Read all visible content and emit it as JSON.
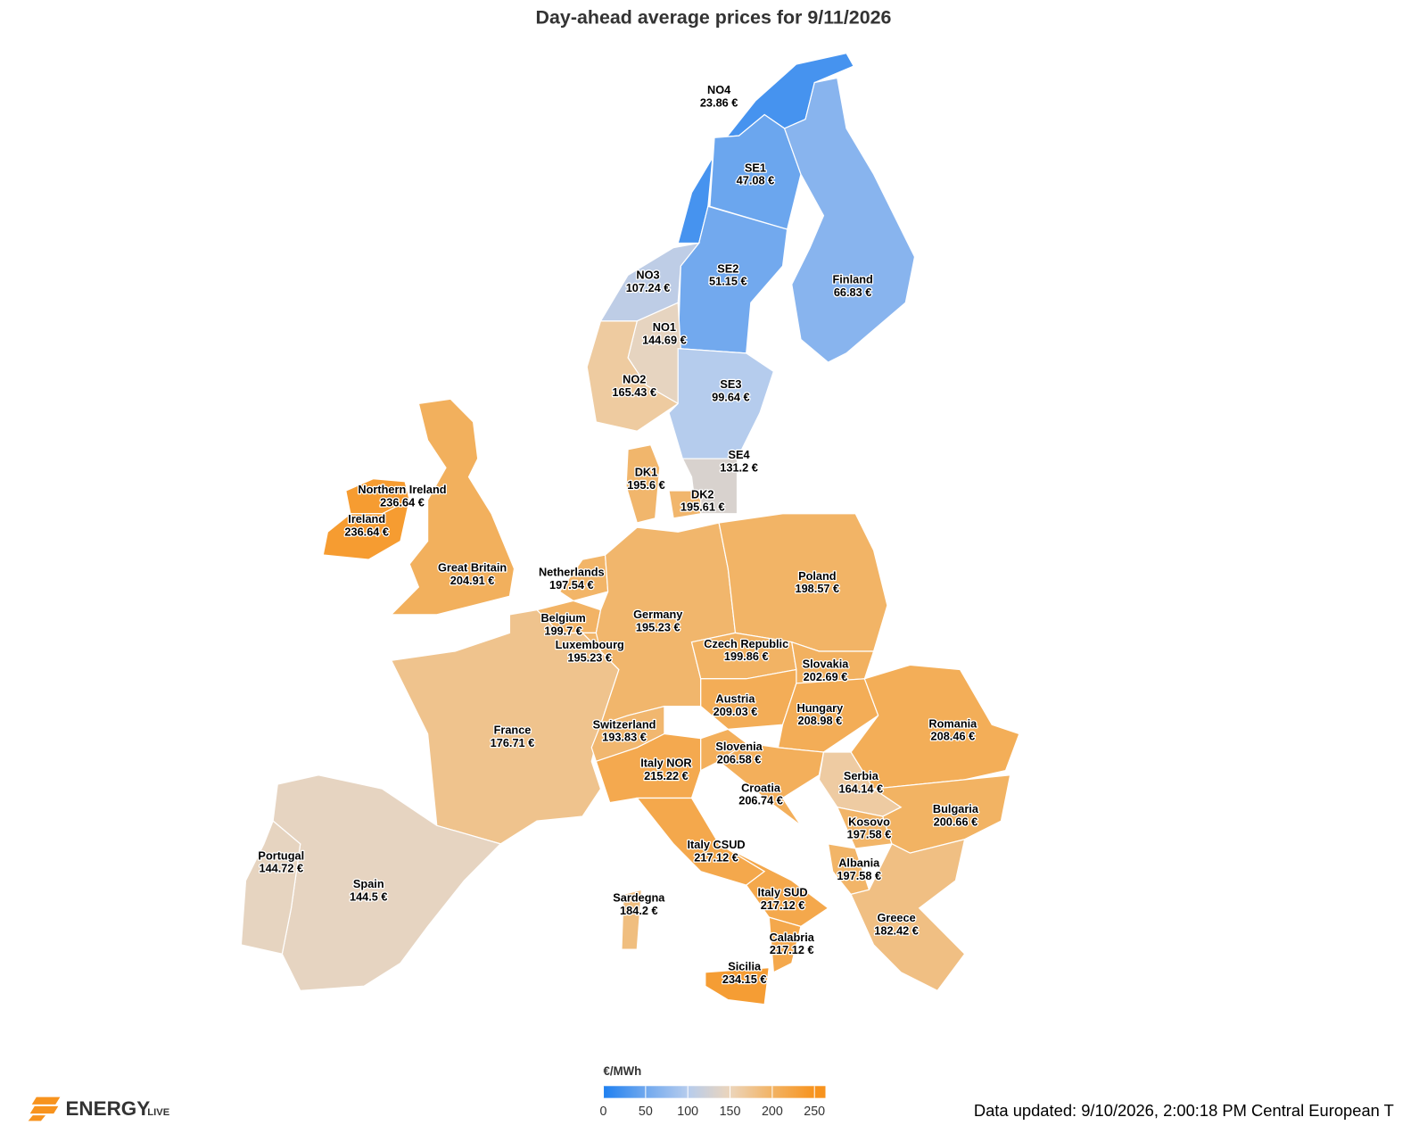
{
  "title": "Day-ahead average prices for 9/11/2026",
  "regions": [
    {
      "name": "NO4",
      "value": 23.86,
      "value_label": "23.86 €"
    },
    {
      "name": "SE1",
      "value": 47.08,
      "value_label": "47.08 €"
    },
    {
      "name": "SE2",
      "value": 51.15,
      "value_label": "51.15 €"
    },
    {
      "name": "Finland",
      "value": 66.83,
      "value_label": "66.83 €"
    },
    {
      "name": "NO3",
      "value": 107.24,
      "value_label": "107.24 €"
    },
    {
      "name": "NO1",
      "value": 144.69,
      "value_label": "144.69 €"
    },
    {
      "name": "NO2",
      "value": 165.43,
      "value_label": "165.43 €"
    },
    {
      "name": "SE3",
      "value": 99.64,
      "value_label": "99.64 €"
    },
    {
      "name": "SE4",
      "value": 131.2,
      "value_label": "131.2 €"
    },
    {
      "name": "DK1",
      "value": 195.6,
      "value_label": "195.6 €"
    },
    {
      "name": "DK2",
      "value": 195.61,
      "value_label": "195.61 €"
    },
    {
      "name": "Northern Ireland",
      "value": 236.64,
      "value_label": "236.64 €"
    },
    {
      "name": "Ireland",
      "value": 236.64,
      "value_label": "236.64 €"
    },
    {
      "name": "Great Britain",
      "value": 204.91,
      "value_label": "204.91 €"
    },
    {
      "name": "Netherlands",
      "value": 197.54,
      "value_label": "197.54 €"
    },
    {
      "name": "Belgium",
      "value": 199.7,
      "value_label": "199.7 €"
    },
    {
      "name": "Luxembourg",
      "value": 195.23,
      "value_label": "195.23 €"
    },
    {
      "name": "France",
      "value": 176.71,
      "value_label": "176.71 €"
    },
    {
      "name": "Spain",
      "value": 144.5,
      "value_label": "144.5 €"
    },
    {
      "name": "Portugal",
      "value": 144.72,
      "value_label": "144.72 €"
    },
    {
      "name": "Germany",
      "value": 195.23,
      "value_label": "195.23 €"
    },
    {
      "name": "Poland",
      "value": 198.57,
      "value_label": "198.57 €"
    },
    {
      "name": "Czech Republic",
      "value": 199.86,
      "value_label": "199.86 €"
    },
    {
      "name": "Slovakia",
      "value": 202.69,
      "value_label": "202.69 €"
    },
    {
      "name": "Austria",
      "value": 209.03,
      "value_label": "209.03 €"
    },
    {
      "name": "Hungary",
      "value": 208.98,
      "value_label": "208.98 €"
    },
    {
      "name": "Romania",
      "value": 208.46,
      "value_label": "208.46 €"
    },
    {
      "name": "Switzerland",
      "value": 193.83,
      "value_label": "193.83 €"
    },
    {
      "name": "Italy NOR",
      "value": 215.22,
      "value_label": "215.22 €"
    },
    {
      "name": "Slovenia",
      "value": 206.58,
      "value_label": "206.58 €"
    },
    {
      "name": "Croatia",
      "value": 206.74,
      "value_label": "206.74 €"
    },
    {
      "name": "Serbia",
      "value": 164.14,
      "value_label": "164.14 €"
    },
    {
      "name": "Kosovo",
      "value": 197.58,
      "value_label": "197.58 €"
    },
    {
      "name": "Bulgaria",
      "value": 200.66,
      "value_label": "200.66 €"
    },
    {
      "name": "Albania",
      "value": 197.58,
      "value_label": "197.58 €"
    },
    {
      "name": "Greece",
      "value": 182.42,
      "value_label": "182.42 €"
    },
    {
      "name": "Italy CSUD",
      "value": 217.12,
      "value_label": "217.12 €"
    },
    {
      "name": "Italy SUD",
      "value": 217.12,
      "value_label": "217.12 €"
    },
    {
      "name": "Calabria",
      "value": 217.12,
      "value_label": "217.12 €"
    },
    {
      "name": "Sicilia",
      "value": 234.15,
      "value_label": "234.15 €"
    },
    {
      "name": "Sardegna",
      "value": 184.2,
      "value_label": "184.2 €"
    }
  ],
  "legend": {
    "unit": "€/MWh",
    "range": [
      0,
      263
    ],
    "ticks": [
      0,
      50,
      100,
      150,
      200,
      250
    ],
    "colors": [
      "#1f80f0",
      "#70a8ee",
      "#b6cced",
      "#ecd5bb",
      "#f2b364",
      "#f7931e"
    ]
  },
  "footer": {
    "updated": "Data updated: 9/10/2026, 2:00:18 PM Central European T"
  },
  "logo": {
    "brand": "ENERGY",
    "suffix": "LIVE"
  }
}
